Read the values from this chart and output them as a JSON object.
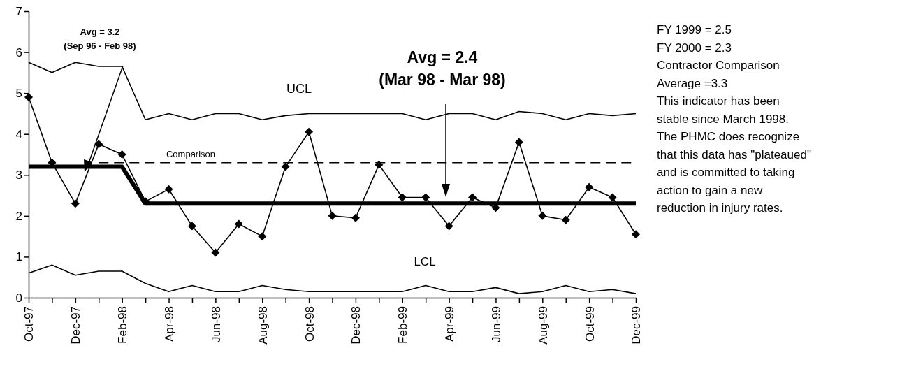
{
  "chart_data": {
    "type": "line",
    "categories": [
      "Oct-97",
      null,
      "Dec-97",
      null,
      "Feb-98",
      null,
      "Apr-98",
      null,
      "Jun-98",
      null,
      "Aug-98",
      null,
      "Oct-98",
      null,
      "Dec-98",
      null,
      "Feb-99",
      null,
      "Apr-99",
      null,
      "Jun-99",
      null,
      "Aug-99",
      null,
      "Oct-99",
      null,
      "Dec-99"
    ],
    "series": [
      {
        "color": "#000000",
        "marker": "diamond",
        "values": [
          4.9,
          3.3,
          2.3,
          3.75,
          3.5,
          2.35,
          2.65,
          1.75,
          1.1,
          1.8,
          1.5,
          3.2,
          4.05,
          2.0,
          1.95,
          3.25,
          2.45,
          2.45,
          1.75,
          2.45,
          2.2,
          3.8,
          2.0,
          1.9,
          2.7,
          2.45,
          1.55
        ]
      },
      {
        "name": "UCL",
        "color": "#000000",
        "marker": "none",
        "values": [
          5.75,
          5.5,
          5.75,
          5.65,
          5.65,
          4.35,
          4.5,
          4.35,
          4.5,
          4.5,
          4.35,
          4.45,
          4.5,
          4.5,
          4.5,
          4.5,
          4.5,
          4.35,
          4.5,
          4.5,
          4.35,
          4.55,
          4.5,
          4.35,
          4.5,
          4.45,
          4.5
        ]
      },
      {
        "name": "LCL",
        "color": "#000000",
        "marker": "none",
        "values": [
          0.6,
          0.8,
          0.55,
          0.65,
          0.65,
          0.35,
          0.15,
          0.3,
          0.15,
          0.15,
          0.3,
          0.2,
          0.15,
          0.15,
          0.15,
          0.15,
          0.15,
          0.3,
          0.15,
          0.15,
          0.25,
          0.1,
          0.15,
          0.3,
          0.15,
          0.2,
          0.1
        ]
      },
      {
        "name": "Comparison",
        "color": "#000000",
        "marker": "none",
        "line_style": "dashed",
        "values": [
          null,
          null,
          null,
          3.3,
          3.3,
          3.3,
          3.3,
          3.3,
          3.3,
          3.3,
          3.3,
          3.3,
          3.3,
          3.3,
          3.3,
          3.3,
          3.3,
          3.3,
          3.3,
          3.3,
          3.3,
          3.3,
          3.3,
          3.3,
          3.3,
          3.3,
          3.3
        ]
      },
      {
        "color": "#000000",
        "marker": "none",
        "values": [
          3.2,
          3.2,
          3.2,
          3.2,
          3.2,
          2.3,
          2.3,
          2.3,
          2.3,
          2.3,
          2.3,
          2.3,
          2.3,
          2.3,
          2.3,
          2.3,
          2.3,
          2.3,
          2.3,
          2.3,
          2.3,
          2.3,
          2.3,
          2.3,
          2.3,
          2.3,
          2.3
        ]
      }
    ],
    "ylim": [
      0,
      7
    ],
    "yticks": [
      0,
      1,
      2,
      3,
      4,
      5,
      6,
      7
    ],
    "grid": false,
    "annotations": [
      "Avg = 3.2",
      "(Sep 96 - Feb 98)",
      "Avg = 2.4",
      "(Mar 98 - Mar 98)",
      "FY 1999 = 2.5",
      "FY 2000 = 2.3",
      "Contractor Comparison",
      "Average =3.3",
      "This indicator has been",
      "stable since March 1998.",
      "The PHMC does recognize",
      "that this data has \"plateaued\"",
      "and is committed to taking",
      "action to gain a new",
      "reduction in injury rates."
    ]
  }
}
